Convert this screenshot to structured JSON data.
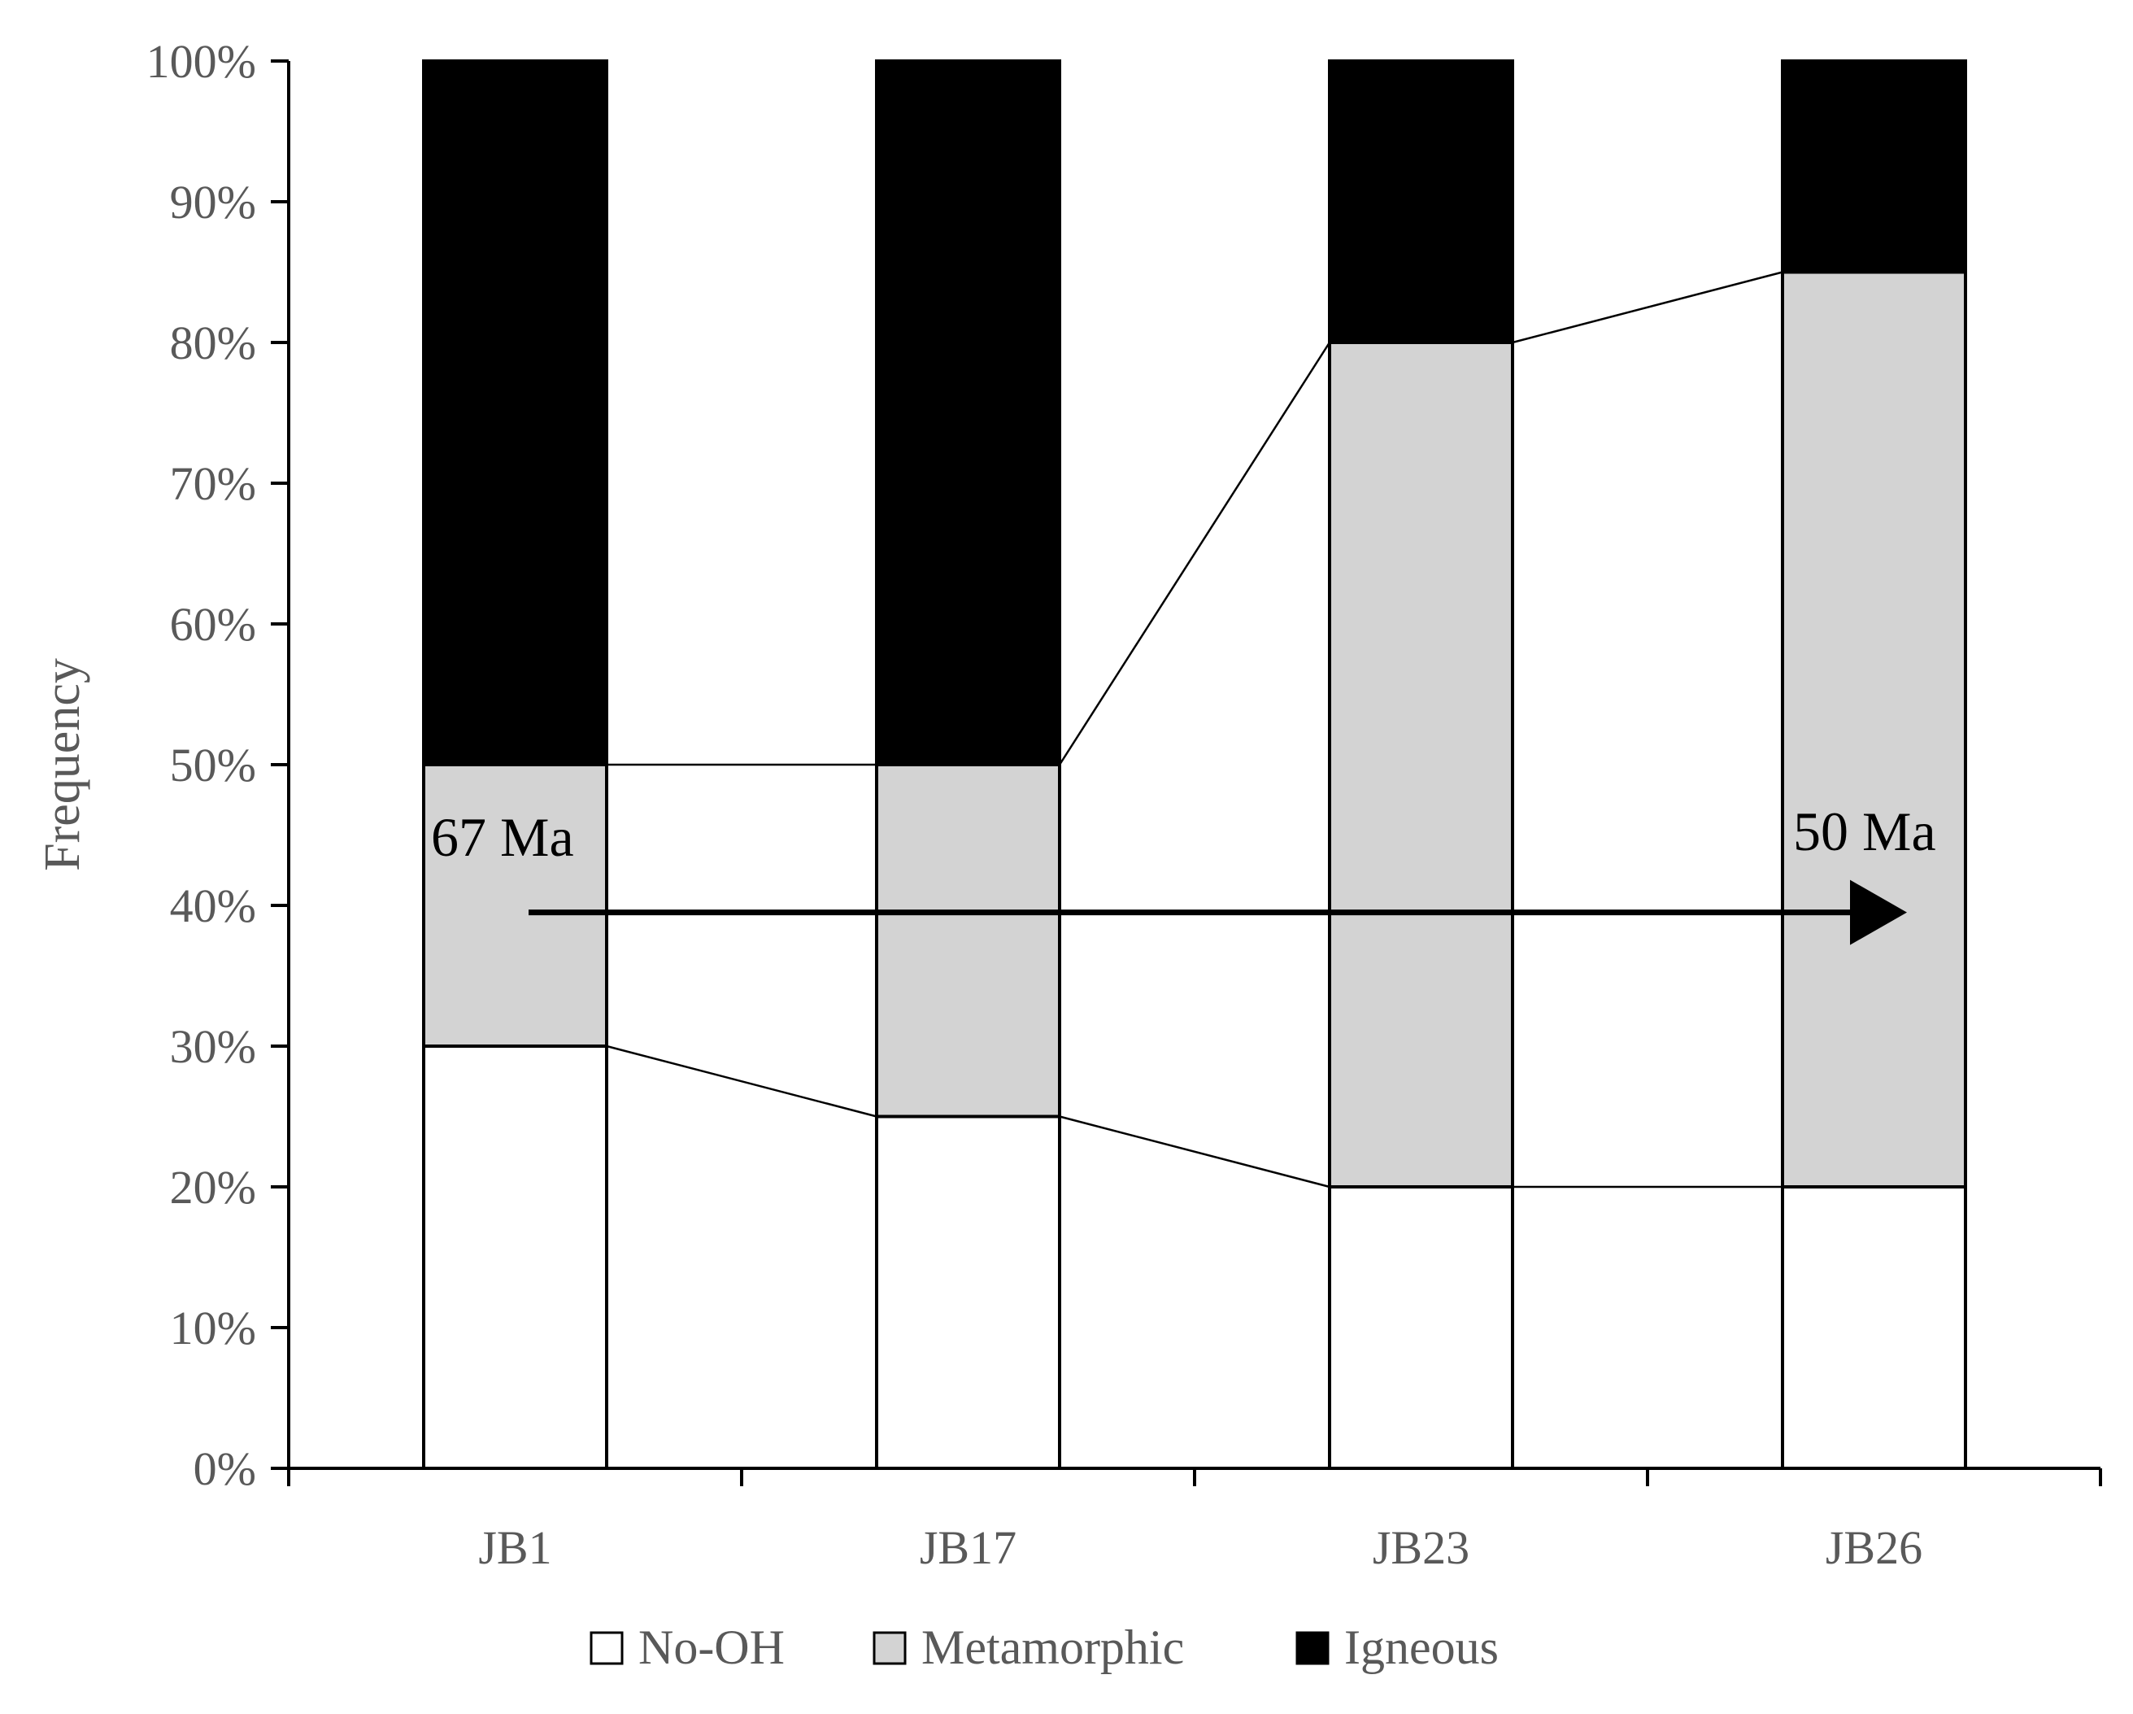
{
  "colors": {
    "No-OH": "#ffffff",
    "Metamorphic": "#d3d3d3",
    "Igneous": "#000000",
    "axis": "#000000",
    "text": "#595959"
  },
  "chart_data": {
    "type": "bar",
    "stacked": true,
    "percent": true,
    "title": "",
    "xlabel": "",
    "ylabel": "Frequency",
    "ylim": [
      0,
      100
    ],
    "yticks": [
      "0%",
      "10%",
      "20%",
      "30%",
      "40%",
      "50%",
      "60%",
      "70%",
      "80%",
      "90%",
      "100%"
    ],
    "categories": [
      "JB1",
      "JB17",
      "JB23",
      "JB26"
    ],
    "series": [
      {
        "name": "No-OH",
        "values": [
          30,
          25,
          20,
          20
        ]
      },
      {
        "name": "Metamorphic",
        "values": [
          20,
          25,
          60,
          65
        ]
      },
      {
        "name": "Igneous",
        "values": [
          50,
          50,
          20,
          15
        ]
      }
    ],
    "series_lines": true,
    "legend_position": "bottom",
    "annotations": [
      {
        "text": "67 Ma",
        "near": "JB1"
      },
      {
        "text": "50 Ma",
        "near": "JB26"
      }
    ],
    "arrow": {
      "from": "67 Ma",
      "to": "50 Ma",
      "level": 39.5
    }
  }
}
